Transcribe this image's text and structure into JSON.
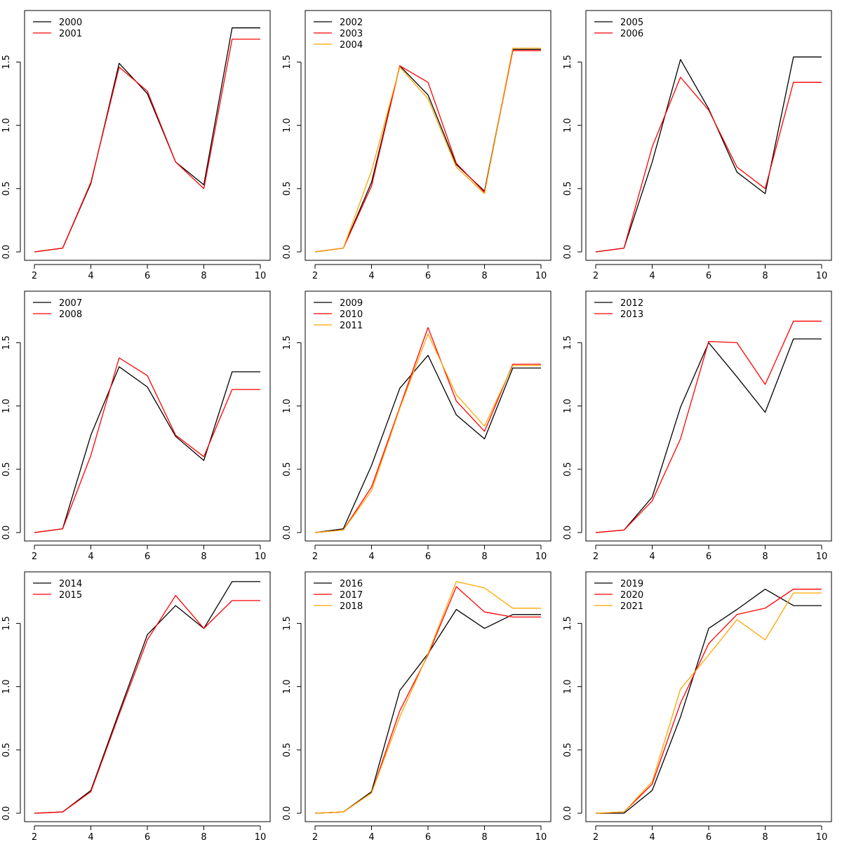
{
  "colors": {
    "black": "#000000",
    "red": "#ff0000",
    "orange": "#ffa500",
    "background": "#ffffff"
  },
  "chart_data": [
    {
      "type": "line",
      "x": [
        2,
        3,
        4,
        5,
        6,
        7,
        8,
        9,
        10
      ],
      "xlim": [
        2,
        10
      ],
      "ylim": [
        0,
        1.8
      ],
      "xticks": [
        "2",
        "4",
        "6",
        "8",
        "10"
      ],
      "yticks": [
        "0.0",
        "0.5",
        "1.0",
        "1.5"
      ],
      "legend_position": "top-left",
      "series": [
        {
          "name": "2000",
          "color": "#000000",
          "values": [
            0.0,
            0.03,
            0.54,
            1.49,
            1.25,
            0.71,
            0.53,
            1.77,
            1.77
          ]
        },
        {
          "name": "2001",
          "color": "#ff0000",
          "values": [
            0.0,
            0.03,
            0.55,
            1.46,
            1.27,
            0.71,
            0.5,
            1.68,
            1.68
          ]
        }
      ]
    },
    {
      "type": "line",
      "x": [
        2,
        3,
        4,
        5,
        6,
        7,
        8,
        9,
        10
      ],
      "xlim": [
        2,
        10
      ],
      "ylim": [
        0,
        1.8
      ],
      "xticks": [
        "2",
        "4",
        "6",
        "8",
        "10"
      ],
      "yticks": [
        "0.0",
        "0.5",
        "1.0",
        "1.5"
      ],
      "legend_position": "top-left",
      "series": [
        {
          "name": "2002",
          "color": "#000000",
          "values": [
            0.0,
            0.03,
            0.55,
            1.47,
            1.24,
            0.69,
            0.48,
            1.6,
            1.6
          ]
        },
        {
          "name": "2003",
          "color": "#ff0000",
          "values": [
            0.0,
            0.03,
            0.52,
            1.47,
            1.34,
            0.7,
            0.47,
            1.59,
            1.59
          ]
        },
        {
          "name": "2004",
          "color": "#ffa500",
          "values": [
            0.0,
            0.03,
            0.64,
            1.46,
            1.21,
            0.67,
            0.46,
            1.61,
            1.61
          ]
        }
      ]
    },
    {
      "type": "line",
      "x": [
        2,
        3,
        4,
        5,
        6,
        7,
        8,
        9,
        10
      ],
      "xlim": [
        2,
        10
      ],
      "ylim": [
        0,
        1.8
      ],
      "xticks": [
        "2",
        "4",
        "6",
        "8",
        "10"
      ],
      "yticks": [
        "0.0",
        "0.5",
        "1.0",
        "1.5"
      ],
      "legend_position": "top-left",
      "series": [
        {
          "name": "2005",
          "color": "#000000",
          "values": [
            0.0,
            0.03,
            0.71,
            1.52,
            1.13,
            0.63,
            0.46,
            1.54,
            1.54
          ]
        },
        {
          "name": "2006",
          "color": "#ff0000",
          "values": [
            0.0,
            0.03,
            0.83,
            1.38,
            1.12,
            0.67,
            0.5,
            1.34,
            1.34
          ]
        }
      ]
    },
    {
      "type": "line",
      "x": [
        2,
        3,
        4,
        5,
        6,
        7,
        8,
        9,
        10
      ],
      "xlim": [
        2,
        10
      ],
      "ylim": [
        0,
        1.8
      ],
      "xticks": [
        "2",
        "4",
        "6",
        "8",
        "10"
      ],
      "yticks": [
        "0.0",
        "0.5",
        "1.0",
        "1.5"
      ],
      "legend_position": "top-left",
      "series": [
        {
          "name": "2007",
          "color": "#000000",
          "values": [
            0.0,
            0.03,
            0.77,
            1.31,
            1.15,
            0.76,
            0.57,
            1.27,
            1.27
          ]
        },
        {
          "name": "2008",
          "color": "#ff0000",
          "values": [
            0.0,
            0.03,
            0.61,
            1.38,
            1.24,
            0.77,
            0.6,
            1.13,
            1.13
          ]
        }
      ]
    },
    {
      "type": "line",
      "x": [
        2,
        3,
        4,
        5,
        6,
        7,
        8,
        9,
        10
      ],
      "xlim": [
        2,
        10
      ],
      "ylim": [
        0,
        1.8
      ],
      "xticks": [
        "2",
        "4",
        "6",
        "8",
        "10"
      ],
      "yticks": [
        "0.0",
        "0.5",
        "1.0",
        "1.5"
      ],
      "legend_position": "top-left",
      "series": [
        {
          "name": "2009",
          "color": "#000000",
          "values": [
            0.0,
            0.03,
            0.53,
            1.14,
            1.4,
            0.93,
            0.74,
            1.3,
            1.3
          ]
        },
        {
          "name": "2010",
          "color": "#ff0000",
          "values": [
            0.0,
            0.02,
            0.36,
            0.99,
            1.62,
            1.04,
            0.8,
            1.33,
            1.33
          ]
        },
        {
          "name": "2011",
          "color": "#ffa500",
          "values": [
            0.0,
            0.02,
            0.33,
            0.98,
            1.57,
            1.09,
            0.84,
            1.32,
            1.32
          ]
        }
      ]
    },
    {
      "type": "line",
      "x": [
        2,
        3,
        4,
        5,
        6,
        7,
        8,
        9,
        10
      ],
      "xlim": [
        2,
        10
      ],
      "ylim": [
        0,
        1.8
      ],
      "xticks": [
        "2",
        "4",
        "6",
        "8",
        "10"
      ],
      "yticks": [
        "0.0",
        "0.5",
        "1.0",
        "1.5"
      ],
      "legend_position": "top-left",
      "series": [
        {
          "name": "2012",
          "color": "#000000",
          "values": [
            0.0,
            0.02,
            0.28,
            0.99,
            1.5,
            1.23,
            0.95,
            1.53,
            1.53
          ]
        },
        {
          "name": "2013",
          "color": "#ff0000",
          "values": [
            0.0,
            0.02,
            0.25,
            0.74,
            1.51,
            1.5,
            1.17,
            1.67,
            1.67
          ]
        }
      ]
    },
    {
      "type": "line",
      "x": [
        2,
        3,
        4,
        5,
        6,
        7,
        8,
        9,
        10
      ],
      "xlim": [
        2,
        10
      ],
      "ylim": [
        0,
        1.8
      ],
      "xticks": [
        "2",
        "4",
        "6",
        "8",
        "10"
      ],
      "yticks": [
        "0.0",
        "0.5",
        "1.0",
        "1.5"
      ],
      "legend_position": "top-left",
      "series": [
        {
          "name": "2014",
          "color": "#000000",
          "values": [
            0.0,
            0.01,
            0.18,
            0.8,
            1.41,
            1.64,
            1.46,
            1.83,
            1.83
          ]
        },
        {
          "name": "2015",
          "color": "#ff0000",
          "values": [
            0.0,
            0.01,
            0.17,
            0.78,
            1.37,
            1.72,
            1.46,
            1.68,
            1.68
          ]
        }
      ]
    },
    {
      "type": "line",
      "x": [
        2,
        3,
        4,
        5,
        6,
        7,
        8,
        9,
        10
      ],
      "xlim": [
        2,
        10
      ],
      "ylim": [
        0,
        1.8
      ],
      "xticks": [
        "2",
        "4",
        "6",
        "8",
        "10"
      ],
      "yticks": [
        "0.0",
        "0.5",
        "1.0",
        "1.5"
      ],
      "legend_position": "top-left",
      "series": [
        {
          "name": "2016",
          "color": "#000000",
          "values": [
            0.0,
            0.01,
            0.17,
            0.97,
            1.26,
            1.61,
            1.46,
            1.57,
            1.57
          ]
        },
        {
          "name": "2017",
          "color": "#ff0000",
          "values": [
            0.0,
            0.01,
            0.16,
            0.81,
            1.25,
            1.79,
            1.59,
            1.55,
            1.55
          ]
        },
        {
          "name": "2018",
          "color": "#ffa500",
          "values": [
            0.0,
            0.01,
            0.16,
            0.76,
            1.26,
            1.83,
            1.78,
            1.62,
            1.62
          ]
        }
      ]
    },
    {
      "type": "line",
      "x": [
        2,
        3,
        4,
        5,
        6,
        7,
        8,
        9,
        10
      ],
      "xlim": [
        2,
        10
      ],
      "ylim": [
        0,
        1.8
      ],
      "xticks": [
        "2",
        "4",
        "6",
        "8",
        "10"
      ],
      "yticks": [
        "0.0",
        "0.5",
        "1.0",
        "1.5"
      ],
      "legend_position": "top-left",
      "series": [
        {
          "name": "2019",
          "color": "#000000",
          "values": [
            0.0,
            0.0,
            0.18,
            0.76,
            1.46,
            1.61,
            1.77,
            1.64,
            1.64
          ]
        },
        {
          "name": "2020",
          "color": "#ff0000",
          "values": [
            0.0,
            0.01,
            0.23,
            0.87,
            1.34,
            1.57,
            1.62,
            1.77,
            1.77
          ]
        },
        {
          "name": "2021",
          "color": "#ffa500",
          "values": [
            0.0,
            0.01,
            0.25,
            0.98,
            1.25,
            1.53,
            1.37,
            1.74,
            1.74
          ]
        }
      ]
    }
  ]
}
